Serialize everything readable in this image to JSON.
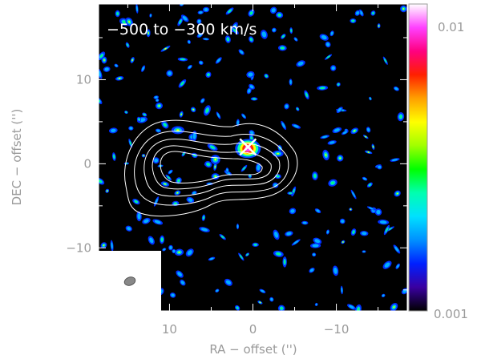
{
  "panel_label": "−500 to −300 km/s",
  "axes": {
    "xlabel": "RA − offset ('')",
    "ylabel": "DEC − offset ('')",
    "x_ticks": [
      {
        "value": 10,
        "label": "10"
      },
      {
        "value": 0,
        "label": "0"
      },
      {
        "value": -10,
        "label": "−10"
      }
    ],
    "y_ticks": [
      {
        "value": 10,
        "label": "10"
      },
      {
        "value": 0,
        "label": "0"
      },
      {
        "value": -10,
        "label": "−10"
      }
    ],
    "xlim": [
      18.5,
      -18.5
    ],
    "ylim": [
      -17.5,
      19.0
    ]
  },
  "colorbar": {
    "min_label": "0.001",
    "max_label": "0.01",
    "min": 0.001,
    "max": 0.01,
    "colors": [
      "#000000",
      "#3a00a0",
      "#0020ff",
      "#0090ff",
      "#00e0ff",
      "#00ffb0",
      "#00ff00",
      "#a0ff00",
      "#ffff00",
      "#ffa000",
      "#ff2000",
      "#ff0080",
      "#ff40ff",
      "#ffffff"
    ]
  },
  "marker": {
    "type": "cross",
    "x": 0.6,
    "y": 2.0,
    "color": "#ffffff"
  },
  "beam_inset": {
    "shape": "ellipse",
    "color": "#888888"
  },
  "colors": {
    "background": "#000000",
    "contour": "#ffffff",
    "inset": "#ffffff",
    "axis_text": "#9a9a9a"
  }
}
